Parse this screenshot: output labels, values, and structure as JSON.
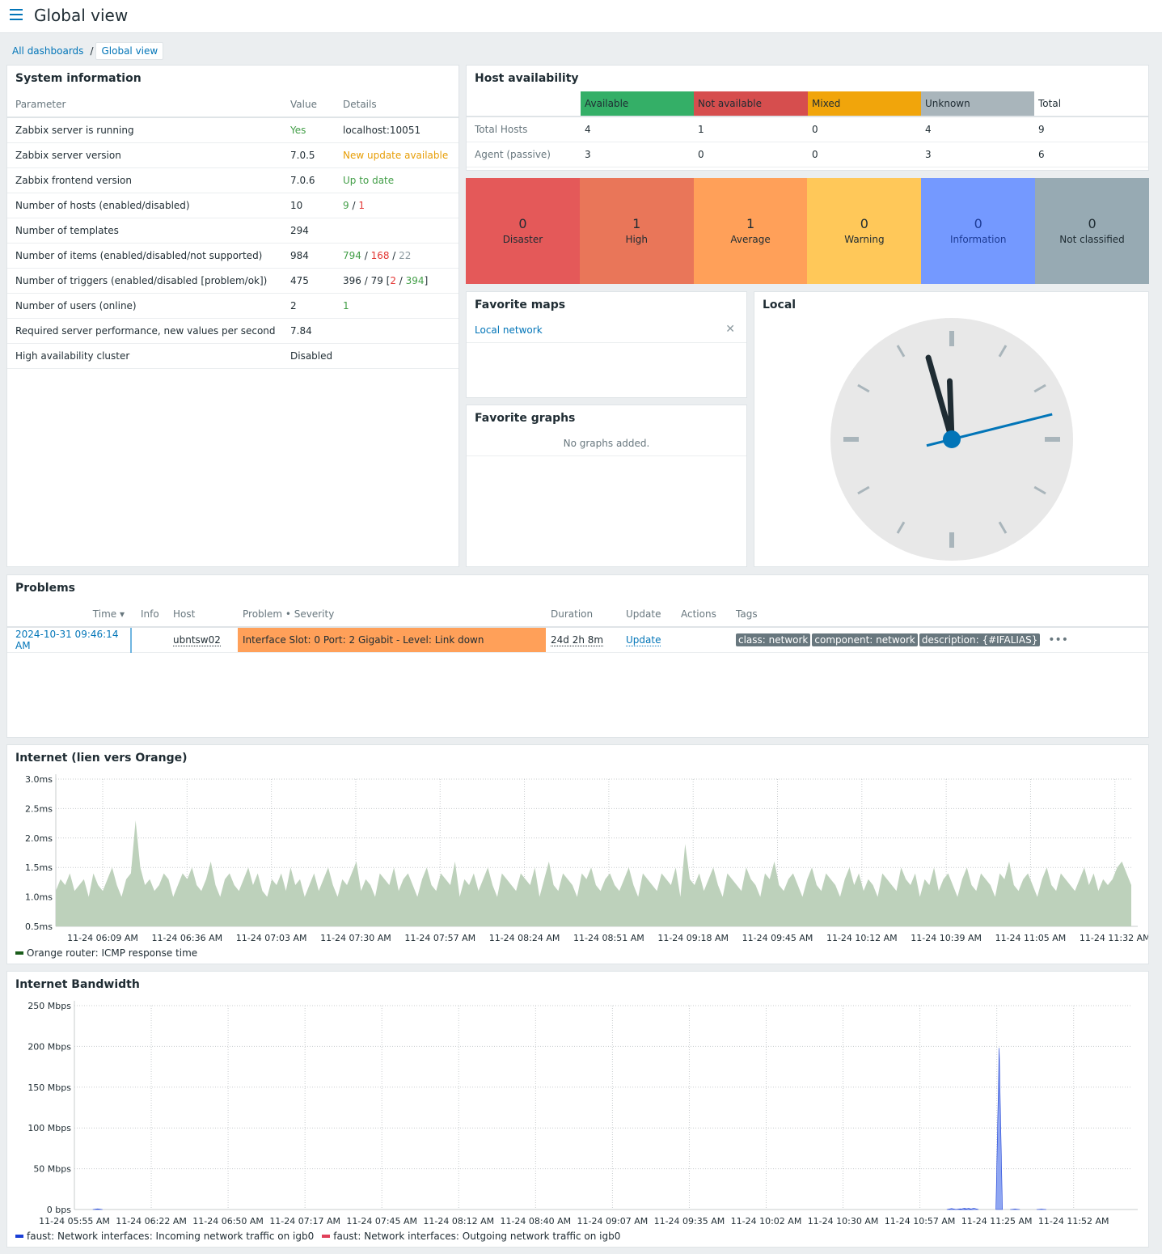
{
  "header": {
    "title": "Global view"
  },
  "breadcrumb": {
    "all": "All dashboards",
    "sep": "/",
    "current": "Global view"
  },
  "system_info": {
    "title": "System information",
    "columns": [
      "Parameter",
      "Value",
      "Details"
    ],
    "rows": [
      {
        "param": "Zabbix server is running",
        "value": "Yes",
        "details": "localhost:10051"
      },
      {
        "param": "Zabbix server version",
        "value": "7.0.5",
        "details": "New update available"
      },
      {
        "param": "Zabbix frontend version",
        "value": "7.0.6",
        "details": "Up to date"
      },
      {
        "param": "Number of hosts (enabled/disabled)",
        "value": "10",
        "d1": "9",
        "d2": "1"
      },
      {
        "param": "Number of templates",
        "value": "294",
        "details": ""
      },
      {
        "param": "Number of items (enabled/disabled/not supported)",
        "value": "984",
        "d1": "794",
        "d2": "168",
        "d3": "22"
      },
      {
        "param": "Number of triggers (enabled/disabled [problem/ok])",
        "value": "475",
        "d1": "396 / 79 [",
        "d2": "2",
        "d3": "394"
      },
      {
        "param": "Number of users (online)",
        "value": "2",
        "details": "1"
      },
      {
        "param": "Required server performance, new values per second",
        "value": "7.84",
        "details": ""
      },
      {
        "param": "High availability cluster",
        "value": "Disabled",
        "details": ""
      }
    ]
  },
  "host_availability": {
    "title": "Host availability",
    "columns": [
      "Available",
      "Not available",
      "Mixed",
      "Unknown",
      "Total"
    ],
    "colors": [
      "#34af67",
      "#d64e4e",
      "#f1a50b",
      "#a9b5bb",
      "#ffffff"
    ],
    "rows": [
      {
        "label": "Total Hosts",
        "values": [
          "4",
          "1",
          "0",
          "4",
          "9"
        ]
      },
      {
        "label": "Agent (passive)",
        "values": [
          "3",
          "0",
          "0",
          "3",
          "6"
        ]
      }
    ]
  },
  "severities": [
    {
      "count": "0",
      "label": "Disaster",
      "color": "#e45959"
    },
    {
      "count": "1",
      "label": "High",
      "color": "#e97659"
    },
    {
      "count": "1",
      "label": "Average",
      "color": "#ffa059"
    },
    {
      "count": "0",
      "label": "Warning",
      "color": "#ffc859"
    },
    {
      "count": "0",
      "label": "Information",
      "color": "#7499ff"
    },
    {
      "count": "0",
      "label": "Not classified",
      "color": "#97aab3"
    }
  ],
  "favorite_maps": {
    "title": "Favorite maps",
    "item": "Local network"
  },
  "favorite_graphs": {
    "title": "Favorite graphs",
    "empty": "No graphs added."
  },
  "clock": {
    "title": "Local",
    "hour": 10,
    "minute": 58,
    "second": 40
  },
  "problems": {
    "title": "Problems",
    "columns": [
      "Time ▾",
      "Info",
      "Host",
      "Problem • Severity",
      "Duration",
      "Update",
      "Actions",
      "Tags"
    ],
    "rows": [
      {
        "time": "2024-10-31 09:46:14 AM",
        "host": "ubntsw02",
        "problem": "Interface Slot: 0 Port: 2 Gigabit - Level: Link down",
        "duration": "24d 2h 8m",
        "update": "Update",
        "tags": [
          "class: network",
          "component: network",
          "description: {#IFALIAS}"
        ]
      }
    ]
  },
  "chart_data": [
    {
      "type": "area",
      "title": "Internet (lien vers Orange)",
      "y_ticks": [
        "3.0ms",
        "2.5ms",
        "2.0ms",
        "1.5ms",
        "1.0ms",
        "0.5ms"
      ],
      "ylim": [
        0.5,
        3.0
      ],
      "x_ticks": [
        "11-24 06:09 AM",
        "11-24 06:36 AM",
        "11-24 07:03 AM",
        "11-24 07:30 AM",
        "11-24 07:57 AM",
        "11-24 08:24 AM",
        "11-24 08:51 AM",
        "11-24 09:18 AM",
        "11-24 09:45 AM",
        "11-24 10:12 AM",
        "11-24 10:39 AM",
        "11-24 11:05 AM",
        "11-24 11:32 AM"
      ],
      "series": [
        {
          "name": "Orange router: ICMP response time",
          "color": "#1a5c1a",
          "fill": "#bdd1bb",
          "values": [
            1.1,
            1.3,
            1.2,
            1.4,
            1.1,
            1.2,
            1.3,
            1.0,
            1.4,
            1.2,
            1.1,
            1.3,
            1.5,
            1.2,
            1.0,
            1.3,
            1.4,
            2.3,
            1.5,
            1.2,
            1.3,
            1.1,
            1.2,
            1.4,
            1.3,
            1.0,
            1.2,
            1.4,
            1.3,
            1.5,
            1.2,
            1.1,
            1.3,
            1.6,
            1.2,
            1.0,
            1.3,
            1.4,
            1.2,
            1.1,
            1.3,
            1.5,
            1.2,
            1.4,
            1.1,
            1.0,
            1.3,
            1.2,
            1.4,
            1.1,
            1.5,
            1.2,
            1.3,
            1.0,
            1.2,
            1.4,
            1.1,
            1.3,
            1.5,
            1.2,
            1.0,
            1.3,
            1.2,
            1.4,
            1.6,
            1.1,
            1.3,
            1.2,
            1.0,
            1.4,
            1.3,
            1.2,
            1.5,
            1.1,
            1.3,
            1.4,
            1.2,
            1.0,
            1.3,
            1.5,
            1.2,
            1.1,
            1.4,
            1.3,
            1.2,
            1.6,
            1.0,
            1.3,
            1.2,
            1.4,
            1.1,
            1.3,
            1.5,
            1.2,
            1.0,
            1.4,
            1.3,
            1.2,
            1.1,
            1.4,
            1.3,
            1.2,
            1.5,
            1.0,
            1.3,
            1.6,
            1.2,
            1.1,
            1.4,
            1.3,
            1.2,
            1.0,
            1.4,
            1.3,
            1.5,
            1.2,
            1.1,
            1.3,
            1.4,
            1.2,
            1.1,
            1.3,
            1.5,
            1.2,
            1.0,
            1.4,
            1.3,
            1.2,
            1.1,
            1.4,
            1.3,
            1.2,
            1.5,
            1.0,
            1.9,
            1.3,
            1.2,
            1.4,
            1.1,
            1.3,
            1.5,
            1.2,
            1.0,
            1.4,
            1.3,
            1.2,
            1.1,
            1.5,
            1.3,
            1.2,
            1.0,
            1.4,
            1.3,
            1.6,
            1.2,
            1.1,
            1.3,
            1.4,
            1.2,
            1.0,
            1.3,
            1.5,
            1.2,
            1.1,
            1.4,
            1.3,
            1.2,
            1.0,
            1.3,
            1.5,
            1.2,
            1.4,
            1.1,
            1.3,
            1.2,
            1.0,
            1.4,
            1.3,
            1.2,
            1.1,
            1.5,
            1.3,
            1.2,
            1.4,
            1.0,
            1.3,
            1.2,
            1.5,
            1.1,
            1.3,
            1.4,
            1.2,
            1.0,
            1.3,
            1.5,
            1.2,
            1.1,
            1.4,
            1.3,
            1.2,
            1.0,
            1.4,
            1.3,
            1.6,
            1.2,
            1.1,
            1.3,
            1.4,
            1.2,
            1.0,
            1.3,
            1.5,
            1.2,
            1.1,
            1.4,
            1.3,
            1.2,
            1.1,
            1.3,
            1.5,
            1.2,
            1.4,
            1.1,
            1.3,
            1.2,
            1.3,
            1.5,
            1.6,
            1.4,
            1.2
          ]
        }
      ]
    },
    {
      "type": "area",
      "title": "Internet Bandwidth",
      "y_ticks": [
        "250 Mbps",
        "200 Mbps",
        "150 Mbps",
        "100 Mbps",
        "50 Mbps",
        "0 bps"
      ],
      "ylim": [
        0,
        250
      ],
      "x_ticks": [
        "11-24 05:55 AM",
        "11-24 06:22 AM",
        "11-24 06:50 AM",
        "11-24 07:17 AM",
        "11-24 07:45 AM",
        "11-24 08:12 AM",
        "11-24 08:40 AM",
        "11-24 09:07 AM",
        "11-24 09:35 AM",
        "11-24 10:02 AM",
        "11-24 10:30 AM",
        "11-24 10:57 AM",
        "11-24 11:25 AM",
        "11-24 11:52 AM"
      ],
      "series": [
        {
          "name": "faust: Network interfaces: Incoming network traffic on igb0",
          "color": "#1a3fd6",
          "fill": "#8fa6f2",
          "peaks": [
            [
              0.022,
              0.8
            ],
            [
              0.83,
              1.2
            ],
            [
              0.838,
              0.8
            ],
            [
              0.842,
              1.6
            ],
            [
              0.846,
              1.4
            ],
            [
              0.851,
              1.6
            ],
            [
              0.875,
              198
            ],
            [
              0.89,
              0.6
            ],
            [
              0.915,
              0.5
            ]
          ]
        },
        {
          "name": "faust: Network interfaces: Outgoing network traffic on igb0",
          "color": "#e0405a",
          "fill": "#f2a0aa",
          "peaks": []
        }
      ]
    }
  ]
}
